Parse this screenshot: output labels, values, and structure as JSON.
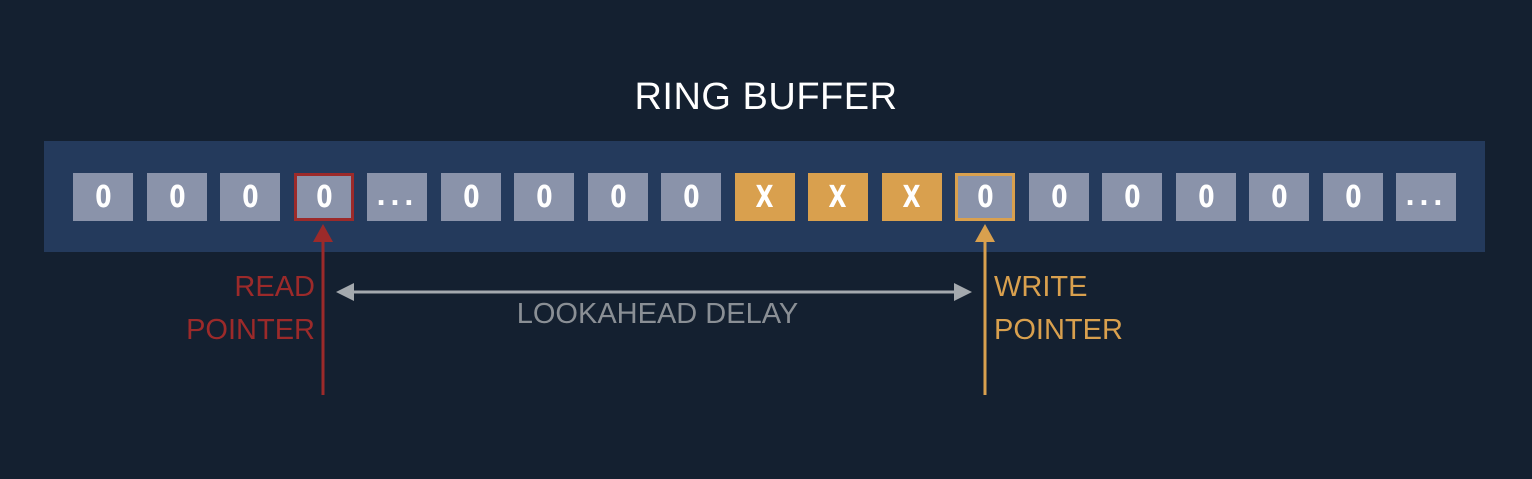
{
  "title": "RING BUFFER",
  "cells": [
    {
      "value": "0",
      "kind": "zero"
    },
    {
      "value": "0",
      "kind": "zero"
    },
    {
      "value": "0",
      "kind": "zero"
    },
    {
      "value": "0",
      "kind": "read"
    },
    {
      "value": "...",
      "kind": "dots"
    },
    {
      "value": "0",
      "kind": "zero"
    },
    {
      "value": "0",
      "kind": "zero"
    },
    {
      "value": "0",
      "kind": "zero"
    },
    {
      "value": "0",
      "kind": "zero"
    },
    {
      "value": "X",
      "kind": "filled"
    },
    {
      "value": "X",
      "kind": "filled"
    },
    {
      "value": "X",
      "kind": "filled"
    },
    {
      "value": "0",
      "kind": "write"
    },
    {
      "value": "0",
      "kind": "zero"
    },
    {
      "value": "0",
      "kind": "zero"
    },
    {
      "value": "0",
      "kind": "zero"
    },
    {
      "value": "0",
      "kind": "zero"
    },
    {
      "value": "0",
      "kind": "zero"
    },
    {
      "value": "...",
      "kind": "dots"
    }
  ],
  "read_pointer": {
    "line1": "READ",
    "line2": "POINTER",
    "color": "#9c2a2a"
  },
  "write_pointer": {
    "line1": "WRITE",
    "line2": "POINTER",
    "color": "#d9a04e"
  },
  "delay": {
    "label": "LOOKAHEAD DELAY",
    "color": "#a4a9ae"
  },
  "colors": {
    "background": "#142030",
    "buffer": "#243a5c",
    "cell": "#8a93aa",
    "filled": "#d9a04e"
  }
}
